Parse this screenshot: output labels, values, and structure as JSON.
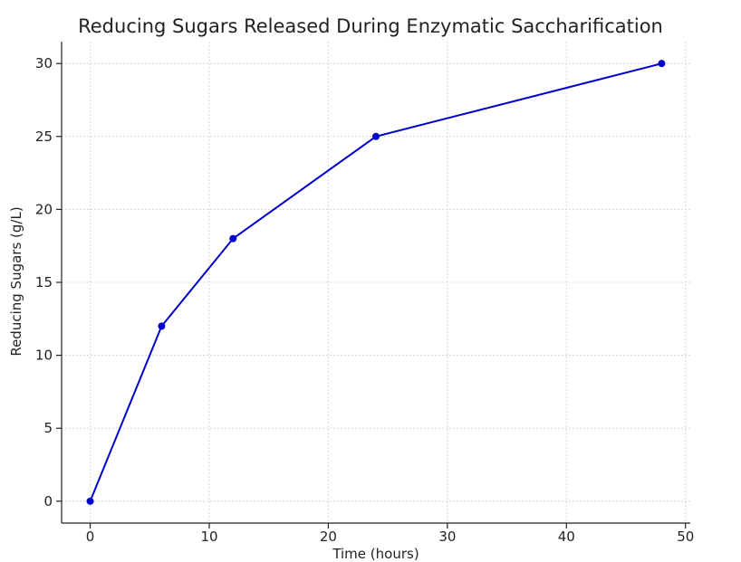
{
  "chart_data": {
    "type": "line",
    "title": "Reducing Sugars Released During Enzymatic Saccharification",
    "xlabel": "Time (hours)",
    "ylabel": "Reducing Sugars (g/L)",
    "x": [
      0,
      6,
      12,
      24,
      48
    ],
    "series": [
      {
        "name": "",
        "values": [
          0,
          12,
          18,
          25,
          30
        ],
        "color": "#0000cc"
      }
    ],
    "xlim": [
      -2.4,
      50.4
    ],
    "ylim": [
      -1.5,
      31.5
    ],
    "xticks": [
      0,
      10,
      20,
      30,
      40,
      50
    ],
    "yticks": [
      0,
      5,
      10,
      15,
      20,
      25,
      30
    ],
    "xtick_labels": [
      "0",
      "10",
      "20",
      "30",
      "40",
      "50"
    ],
    "ytick_labels": [
      "0",
      "5",
      "10",
      "15",
      "20",
      "25",
      "30"
    ],
    "grid": true,
    "markers": true
  }
}
